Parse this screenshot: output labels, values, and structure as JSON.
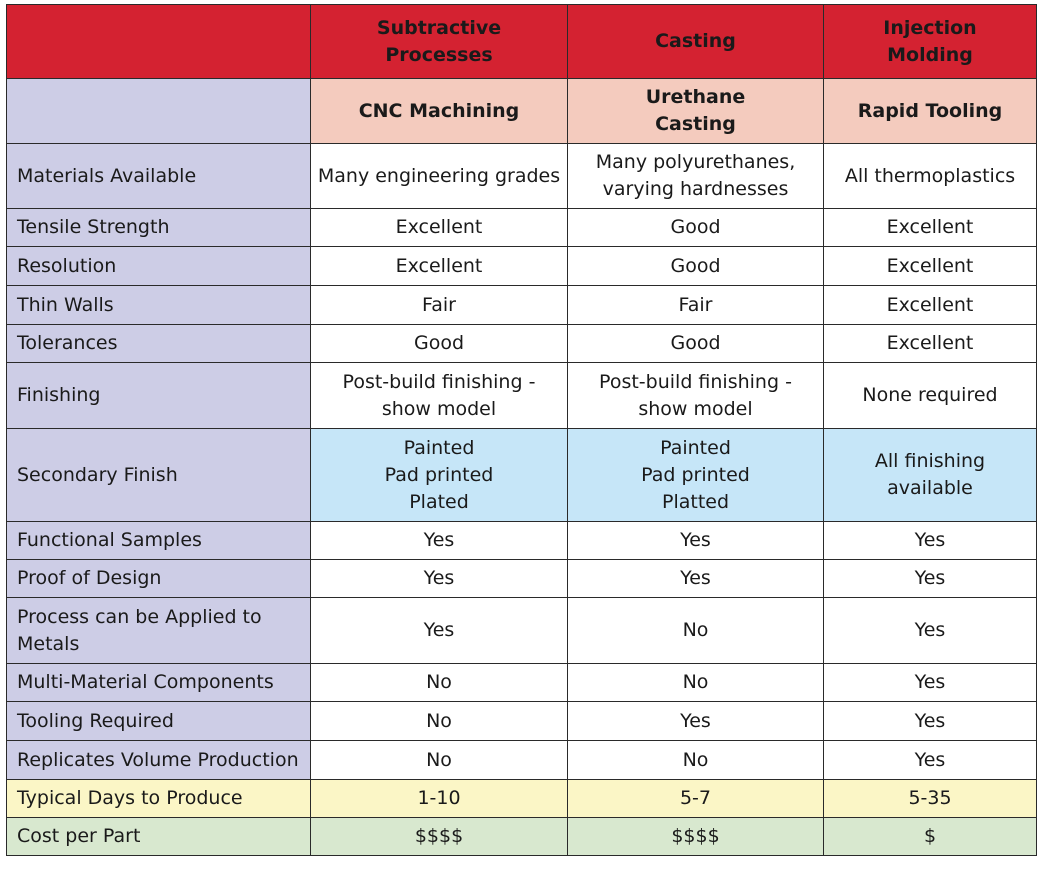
{
  "header": {
    "groups": [
      {
        "line1": "Subtractive",
        "line2": "Processes"
      },
      {
        "line1": "Casting",
        "line2": ""
      },
      {
        "line1": "Injection",
        "line2": "Molding"
      }
    ]
  },
  "subheader": {
    "methods": [
      {
        "line1": "CNC Machining",
        "line2": ""
      },
      {
        "line1": "Urethane",
        "line2": "Casting"
      },
      {
        "line1": "Rapid Tooling",
        "line2": ""
      }
    ]
  },
  "rows": [
    {
      "label": "Materials Available",
      "cells": [
        [
          "Many engineering grades"
        ],
        [
          "Many polyurethanes,",
          "varying hardnesses"
        ],
        [
          "All thermoplastics"
        ]
      ]
    },
    {
      "label": "Tensile Strength",
      "cells": [
        [
          "Excellent"
        ],
        [
          "Good"
        ],
        [
          "Excellent"
        ]
      ]
    },
    {
      "label": "Resolution",
      "cells": [
        [
          "Excellent"
        ],
        [
          "Good"
        ],
        [
          "Excellent"
        ]
      ]
    },
    {
      "label": "Thin Walls",
      "cells": [
        [
          "Fair"
        ],
        [
          "Fair"
        ],
        [
          "Excellent"
        ]
      ]
    },
    {
      "label": "Tolerances",
      "cells": [
        [
          "Good"
        ],
        [
          "Good"
        ],
        [
          "Excellent"
        ]
      ]
    },
    {
      "label": "Finishing",
      "cells": [
        [
          "Post-build finishing -",
          "show model"
        ],
        [
          "Post-build finishing -",
          "show model"
        ],
        [
          "None required"
        ]
      ]
    },
    {
      "label": "Secondary Finish",
      "cells": [
        [
          "Painted",
          "Pad printed",
          "Plated"
        ],
        [
          "Painted",
          "Pad printed",
          "Platted"
        ],
        [
          "All finishing available"
        ]
      ]
    },
    {
      "label": "Functional Samples",
      "cells": [
        [
          "Yes"
        ],
        [
          "Yes"
        ],
        [
          "Yes"
        ]
      ]
    },
    {
      "label": "Proof of Design",
      "cells": [
        [
          "Yes"
        ],
        [
          "Yes"
        ],
        [
          "Yes"
        ]
      ]
    },
    {
      "label": [
        "Process can be Applied to",
        "Metals"
      ],
      "cells": [
        [
          "Yes"
        ],
        [
          "No"
        ],
        [
          "Yes"
        ]
      ]
    },
    {
      "label": "Multi-Material Components",
      "cells": [
        [
          "No"
        ],
        [
          "No"
        ],
        [
          "Yes"
        ]
      ]
    },
    {
      "label": "Tooling Required",
      "cells": [
        [
          "No"
        ],
        [
          "Yes"
        ],
        [
          "Yes"
        ]
      ]
    },
    {
      "label": "Replicates Volume Production",
      "cells": [
        [
          "No"
        ],
        [
          "No"
        ],
        [
          "Yes"
        ]
      ]
    },
    {
      "label": "Typical Days to Produce",
      "cells": [
        [
          "1-10"
        ],
        [
          "5-7"
        ],
        [
          "5-35"
        ]
      ]
    },
    {
      "label": "Cost per Part",
      "cells": [
        [
          "$$$$"
        ],
        [
          "$$$$"
        ],
        [
          "$"
        ]
      ]
    }
  ]
}
